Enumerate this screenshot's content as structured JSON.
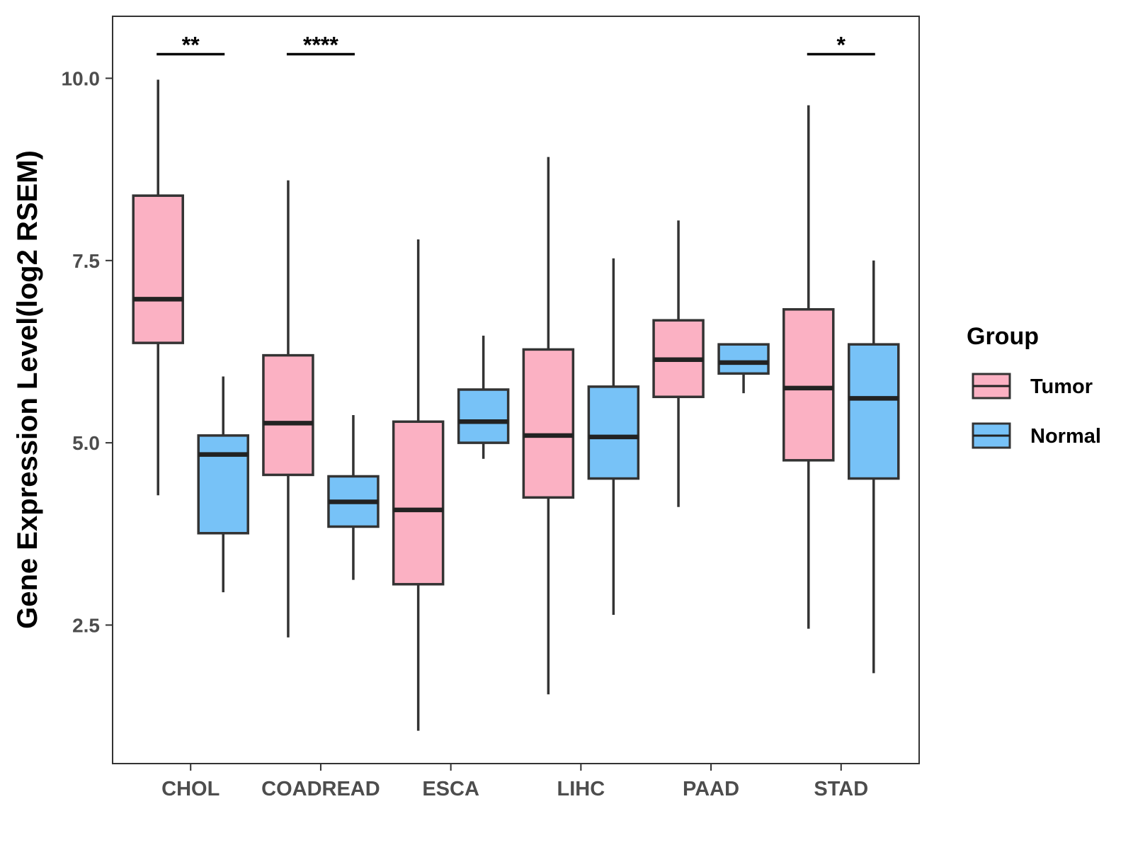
{
  "chart_data": {
    "type": "boxplot",
    "title": "",
    "xlabel": "",
    "ylabel": "Gene Expression Level(log2 RSEM)",
    "ylim": [
      0.6,
      10.85
    ],
    "yticks": [
      2.5,
      5.0,
      7.5,
      10.0
    ],
    "ytick_labels": [
      "2.5",
      "5.0",
      "7.5",
      "10.0"
    ],
    "grid": false,
    "categories": [
      "CHOL",
      "COADREAD",
      "ESCA",
      "LIHC",
      "PAAD",
      "STAD"
    ],
    "legend": {
      "title": "Group",
      "position": "right",
      "entries": [
        "Tumor",
        "Normal"
      ]
    },
    "series": [
      {
        "name": "Tumor",
        "color": "#FBB1C3",
        "boxes": [
          {
            "min": 4.28,
            "q1": 6.37,
            "median": 6.97,
            "q3": 8.39,
            "max": 9.98
          },
          {
            "min": 2.33,
            "q1": 4.56,
            "median": 5.27,
            "q3": 6.2,
            "max": 8.6
          },
          {
            "min": 1.05,
            "q1": 3.06,
            "median": 4.08,
            "q3": 5.29,
            "max": 7.79
          },
          {
            "min": 1.55,
            "q1": 4.25,
            "median": 5.1,
            "q3": 6.28,
            "max": 8.92
          },
          {
            "min": 4.12,
            "q1": 5.63,
            "median": 6.14,
            "q3": 6.68,
            "max": 8.05
          },
          {
            "min": 2.45,
            "q1": 4.76,
            "median": 5.75,
            "q3": 6.83,
            "max": 9.63
          }
        ]
      },
      {
        "name": "Normal",
        "color": "#77C2F7",
        "boxes": [
          {
            "min": 2.95,
            "q1": 3.76,
            "median": 4.84,
            "q3": 5.1,
            "max": 5.91
          },
          {
            "min": 3.12,
            "q1": 3.85,
            "median": 4.19,
            "q3": 4.54,
            "max": 5.38
          },
          {
            "min": 4.78,
            "q1": 5.0,
            "median": 5.29,
            "q3": 5.73,
            "max": 6.47
          },
          {
            "min": 2.64,
            "q1": 4.51,
            "median": 5.08,
            "q3": 5.77,
            "max": 7.53
          },
          {
            "min": 5.68,
            "q1": 5.95,
            "median": 6.1,
            "q3": 6.35,
            "max": 6.35
          },
          {
            "min": 1.84,
            "q1": 4.51,
            "median": 5.61,
            "q3": 6.35,
            "max": 7.5
          }
        ]
      }
    ],
    "significance": [
      {
        "category": "CHOL",
        "label": "**",
        "y": 10.33
      },
      {
        "category": "COADREAD",
        "label": "****",
        "y": 10.33
      },
      {
        "category": "STAD",
        "label": "*",
        "y": 10.33
      }
    ]
  }
}
